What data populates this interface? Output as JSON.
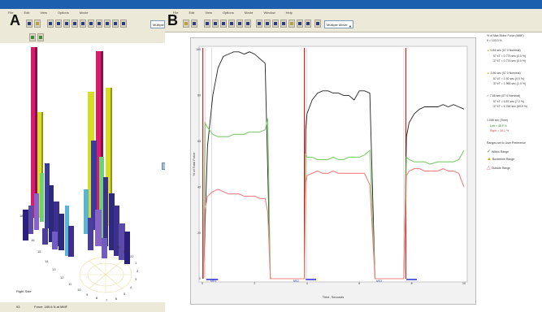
{
  "panel_labels": {
    "a": "A",
    "b": "B"
  },
  "menu": [
    "File",
    "Edit",
    "View",
    "Options",
    "Movie",
    "Window",
    "Help"
  ],
  "paneA": {
    "dropdown": "Multiple",
    "side_label": "Right Side",
    "status_value": "93",
    "status_text": "Force: 185.6 N at MMF",
    "axis_numbers": [
      "18",
      "17",
      "16",
      "15",
      "14",
      "13",
      "12",
      "11",
      "10",
      "9",
      "8",
      "7",
      "6",
      "5",
      "4",
      "3",
      "2",
      "1",
      "22",
      "21",
      "20",
      "19"
    ]
  },
  "paneB": {
    "dropdown": "Multiple Movie",
    "ylabel": "% of Total Force",
    "xlabel": "Time, Seconds",
    "y_ticks": [
      "100",
      "80",
      "60",
      "40",
      "20",
      "0"
    ],
    "x_ticks": [
      "0",
      "2",
      "4",
      "6",
      "8",
      "10"
    ],
    "markers": [
      "MS1",
      "MS2",
      "MS3"
    ],
    "legend": {
      "header": "% of Max Motor Force (MMF)",
      "scale": "0 = 100.0 %",
      "entries": [
        {
          "title": "0.84 sec (07 0 Nominal)",
          "lines": [
            "57 kT = 0.775 sec (0.0 %)",
            "37 kT = 0.775 sec (0.0 %)"
          ]
        },
        {
          "title": "3.96 sec (07 0 Nominal)",
          "lines": [
            "57 kT = 1.92 sec (0.0 %)",
            "37 kT = 1.966 sec (1.0 %)"
          ]
        },
        {
          "title": "7.05 sec (07 0 Nominal)",
          "lines": [
            "57 kT = 6.87 sec (7.2 %)",
            "37 kT = 6.765 sec (59.9 %)"
          ]
        }
      ],
      "time_label": "1.008 sec (Time)",
      "left_right": [
        "Left = 48.9 %",
        "Right = 39.1 %"
      ],
      "ranges_title": "Ranges set to User Preference",
      "ranges": [
        "Within Range",
        "Borderline Range",
        "Outside Range"
      ],
      "range_colors": [
        "#2e8b2e",
        "#c9a800",
        "#d46a8a"
      ]
    }
  },
  "chart_data": {
    "type": "line",
    "title": "",
    "xlabel": "Time, Seconds",
    "ylabel": "% of Total Force",
    "xlim": [
      0,
      10
    ],
    "ylim": [
      0,
      100
    ],
    "x_ticks": [
      0,
      2,
      4,
      6,
      8,
      10
    ],
    "y_ticks": [
      0,
      20,
      40,
      60,
      80,
      100
    ],
    "series": [
      {
        "color": "#222222",
        "x": [
          0.05,
          0.1,
          0.2,
          0.4,
          0.6,
          0.8,
          1.0,
          1.2,
          1.4,
          1.6,
          1.8,
          2.0,
          2.2,
          2.4,
          2.6,
          3.9,
          3.95,
          4.0,
          4.2,
          4.4,
          4.6,
          4.8,
          5.0,
          5.2,
          5.4,
          5.6,
          5.8,
          6.0,
          6.2,
          6.4,
          6.6,
          7.7,
          7.8,
          7.9,
          8.1,
          8.3,
          8.5,
          8.7,
          9.0,
          9.2,
          9.4,
          9.6,
          9.8,
          10.0
        ],
        "values": [
          0,
          22,
          58,
          80,
          92,
          97,
          98,
          99,
          99,
          98,
          99,
          98,
          96,
          94,
          0,
          0,
          65,
          72,
          78,
          81,
          82,
          82,
          81,
          81,
          80,
          80,
          78,
          82,
          82,
          81,
          0,
          0,
          62,
          68,
          72,
          74,
          75,
          75,
          75,
          76,
          75,
          76,
          75,
          74
        ]
      },
      {
        "color": "#7ecb6e",
        "x": [
          0.05,
          0.1,
          0.2,
          0.4,
          0.6,
          0.8,
          1.0,
          1.2,
          1.4,
          1.6,
          1.8,
          2.0,
          2.2,
          2.4,
          2.5,
          2.6,
          3.9,
          3.95,
          4.0,
          4.2,
          4.4,
          4.6,
          4.8,
          5.0,
          5.2,
          5.4,
          5.6,
          5.8,
          6.0,
          6.2,
          6.4,
          6.6,
          7.7,
          7.8,
          7.9,
          8.1,
          8.3,
          8.5,
          8.7,
          9.0,
          9.2,
          9.4,
          9.6,
          9.8,
          10.0
        ],
        "values": [
          0,
          68,
          66,
          63,
          62,
          62,
          62,
          63,
          63,
          63,
          64,
          64,
          64,
          65,
          70,
          0,
          0,
          54,
          53,
          53,
          52,
          52,
          52,
          53,
          52,
          52,
          53,
          53,
          53,
          54,
          56,
          0,
          0,
          53,
          52,
          51,
          51,
          51,
          50,
          51,
          51,
          51,
          51,
          52,
          56
        ]
      },
      {
        "color": "#f08080",
        "x": [
          0.05,
          0.1,
          0.2,
          0.4,
          0.6,
          0.8,
          1.0,
          1.2,
          1.4,
          1.6,
          1.8,
          2.0,
          2.2,
          2.4,
          2.5,
          2.6,
          3.9,
          3.95,
          4.0,
          4.2,
          4.4,
          4.6,
          4.8,
          5.0,
          5.2,
          5.4,
          5.6,
          5.8,
          6.0,
          6.2,
          6.4,
          6.6,
          7.7,
          7.8,
          7.9,
          8.1,
          8.3,
          8.5,
          8.7,
          9.0,
          9.2,
          9.4,
          9.6,
          9.8,
          10.0
        ],
        "values": [
          0,
          30,
          36,
          38,
          39,
          38,
          37,
          37,
          37,
          36,
          36,
          36,
          35,
          35,
          29,
          0,
          0,
          42,
          45,
          46,
          47,
          46,
          46,
          47,
          46,
          46,
          46,
          46,
          46,
          46,
          41,
          0,
          0,
          45,
          47,
          48,
          48,
          47,
          47,
          47,
          48,
          47,
          47,
          46,
          40
        ]
      }
    ],
    "grid": false,
    "legend": "right"
  }
}
